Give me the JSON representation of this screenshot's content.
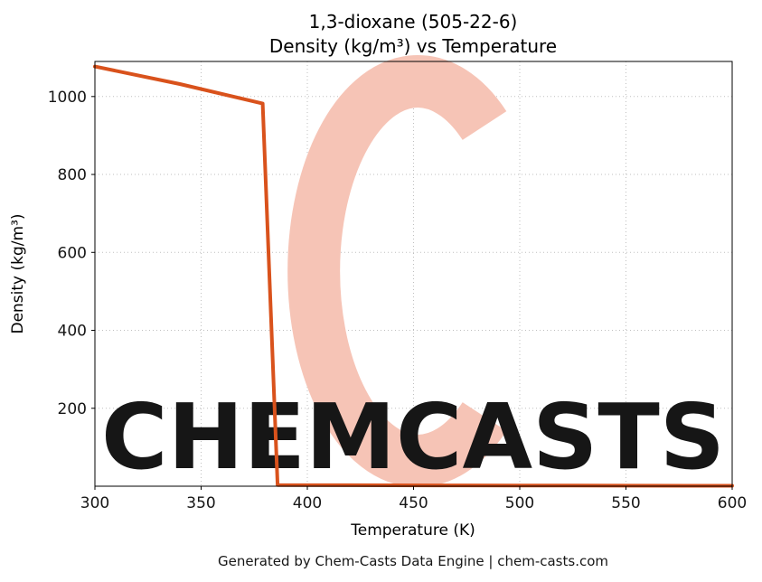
{
  "watermark": {
    "text": "CHEMCASTS",
    "symbol": "C"
  },
  "footer": {
    "text": "Generated by Chem-Casts Data Engine | chem-casts.com"
  },
  "colors": {
    "line": "#d9521c",
    "watermark": "#f6c4b6",
    "grid": "#bfbfbf",
    "axis": "#000000",
    "footer_text": "#595959"
  },
  "chart_data": {
    "type": "line",
    "title_line1": "1,3-dioxane (505-22-6)",
    "title_line2": "Density (kg/m³) vs Temperature",
    "xlabel": "Temperature (K)",
    "ylabel": "Density (kg/m³)",
    "xlim": [
      300,
      600
    ],
    "ylim": [
      0,
      1090
    ],
    "x_ticks": [
      300,
      350,
      400,
      450,
      500,
      550,
      600
    ],
    "y_ticks": [
      200,
      400,
      600,
      800,
      1000
    ],
    "grid": true,
    "legend": false,
    "series": [
      {
        "name": "Density",
        "points": [
          [
            300,
            1077
          ],
          [
            340,
            1032
          ],
          [
            379,
            982
          ],
          [
            386,
            3
          ],
          [
            420,
            2.6
          ],
          [
            460,
            2.2
          ],
          [
            500,
            1.8
          ],
          [
            550,
            1.4
          ],
          [
            600,
            1.1
          ]
        ]
      }
    ]
  }
}
